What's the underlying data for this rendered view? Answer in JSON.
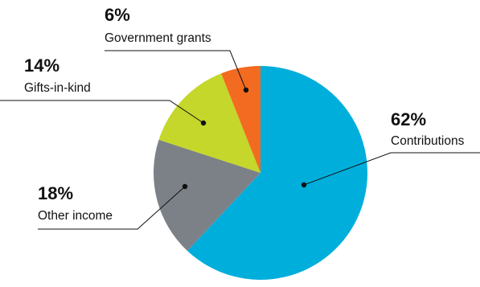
{
  "chart_data": {
    "type": "pie",
    "title": "",
    "slices": [
      {
        "label": "Contributions",
        "percent_label": "62%",
        "value": 62,
        "color": "#00AEDC"
      },
      {
        "label": "Other income",
        "percent_label": "18%",
        "value": 18,
        "color": "#7C8187"
      },
      {
        "label": "Gifts-in-kind",
        "percent_label": "14%",
        "value": 14,
        "color": "#C4D72A"
      },
      {
        "label": "Government grants",
        "percent_label": "6%",
        "value": 6,
        "color": "#F26B21"
      }
    ],
    "order": "clockwise from top, starting with Contributions",
    "legend": "callout labels with leader lines"
  }
}
